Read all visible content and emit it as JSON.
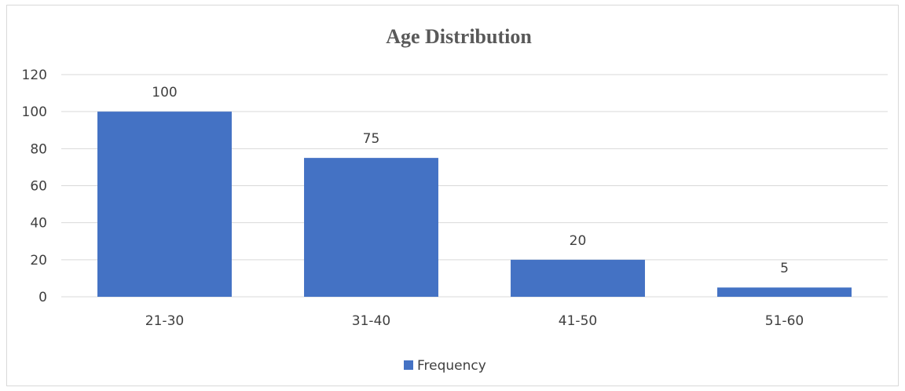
{
  "chart_data": {
    "type": "bar",
    "title": "Age Distribution",
    "categories": [
      "21-30",
      "31-40",
      "41-50",
      "51-60"
    ],
    "series": [
      {
        "name": "Frequency",
        "values": [
          100,
          75,
          20,
          5
        ],
        "color": "#4472c4"
      }
    ],
    "ylim": [
      0,
      120
    ],
    "yticks": [
      0,
      20,
      40,
      60,
      80,
      100,
      120
    ],
    "grid": true,
    "data_labels": true,
    "legend_position": "bottom"
  }
}
